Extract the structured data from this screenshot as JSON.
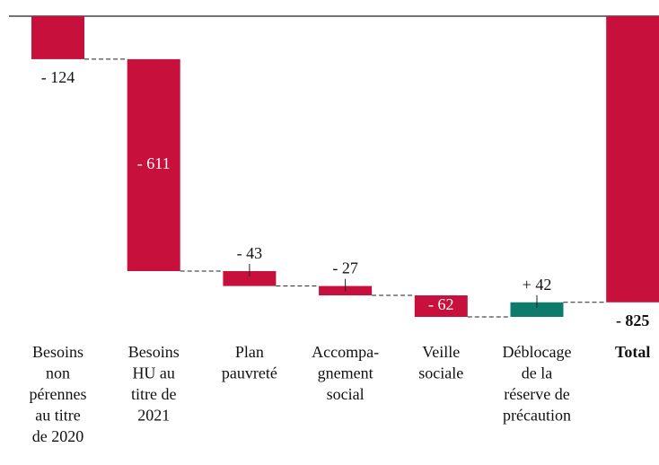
{
  "chart_data": {
    "type": "waterfall",
    "categories": [
      [
        "Besoins",
        "non",
        "pérennes",
        "au titre",
        "de 2020"
      ],
      [
        "Besoins",
        "HU au",
        "titre de",
        "2021"
      ],
      [
        "Plan",
        "pauvreté"
      ],
      [
        "Accompa-",
        "gnement",
        "social"
      ],
      [
        "Veille",
        "sociale"
      ],
      [
        "Déblocage",
        "de la",
        "réserve de",
        "précaution"
      ],
      [
        "Total"
      ]
    ],
    "values": [
      -124,
      -611,
      -43,
      -27,
      -62,
      42,
      -825
    ],
    "value_labels": [
      "- 124",
      "- 611",
      "- 43",
      "- 27",
      "- 62",
      "+ 42",
      "- 825"
    ],
    "negative_color": "#c8103c",
    "positive_color": "#0d7a6c",
    "total_color": "#c8103c"
  }
}
